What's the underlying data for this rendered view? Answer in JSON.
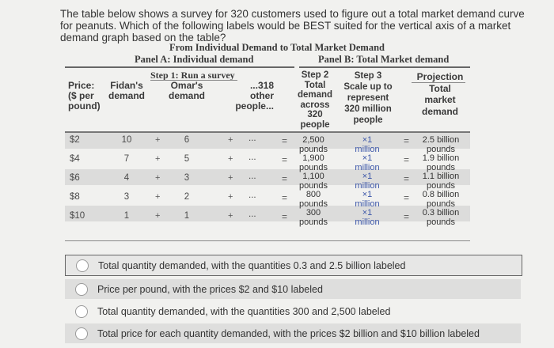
{
  "question": "The table below shows a survey for 320 customers used to figure out a total market demand curve for peanuts. Which of the following labels would be BEST suited for the vertical axis of a market demand graph based on the table?",
  "figure": {
    "title": "From Individual Demand to Total Market Demand",
    "panel_a_title": "Panel A: Individual demand",
    "panel_b_title": "Panel B: Total Market demand",
    "step1": "Step 1: Run a survey",
    "headers": {
      "price": [
        "Price:",
        "($ per",
        "pound)"
      ],
      "fidan": [
        "Fidan's",
        "demand"
      ],
      "omar": [
        "Omar's",
        "demand"
      ],
      "other": [
        "...318",
        "other",
        "people..."
      ],
      "step2": [
        "Step 2",
        "Total",
        "demand",
        "across",
        "320",
        "people"
      ],
      "step3": [
        "Step 3",
        "Scale up to",
        "represent",
        "320 million",
        "people"
      ],
      "projection": [
        "Projection",
        "Total",
        "market",
        "demand"
      ]
    },
    "rows": [
      {
        "price": "$2",
        "fidan": "10",
        "omar": "6",
        "step2": [
          "2,500",
          "pounds"
        ],
        "step3": [
          "×1",
          "million"
        ],
        "projection": [
          "2.5 billion",
          "pounds"
        ]
      },
      {
        "price": "$4",
        "fidan": "7",
        "omar": "5",
        "step2": [
          "1,900",
          "pounds"
        ],
        "step3": [
          "×1",
          "million"
        ],
        "projection": [
          "1.9 billion",
          "pounds"
        ]
      },
      {
        "price": "$6",
        "fidan": "4",
        "omar": "3",
        "step2": [
          "1,100",
          "pounds"
        ],
        "step3": [
          "×1",
          "million"
        ],
        "projection": [
          "1.1 billion",
          "pounds"
        ]
      },
      {
        "price": "$8",
        "fidan": "3",
        "omar": "2",
        "step2": [
          "800",
          "pounds"
        ],
        "step3": [
          "×1",
          "million"
        ],
        "projection": [
          "0.8 billion",
          "pounds"
        ]
      },
      {
        "price": "$10",
        "fidan": "1",
        "omar": "1",
        "step2": [
          "300",
          "pounds"
        ],
        "step3": [
          "×1",
          "million"
        ],
        "projection": [
          "0.3 billion",
          "pounds"
        ]
      }
    ],
    "symbols": {
      "plus": "+",
      "ellipsis": "...",
      "equals": "="
    }
  },
  "options": [
    "Total quantity demanded, with the quantities 0.3 and 2.5 billion labeled",
    "Price per pound, with the prices $2 and $10 labeled",
    "Total quantity demanded, with the quantities 300 and 2,500 labeled",
    "Total price for each quantity demanded, with the prices $2 billion and $10 billion labeled"
  ]
}
